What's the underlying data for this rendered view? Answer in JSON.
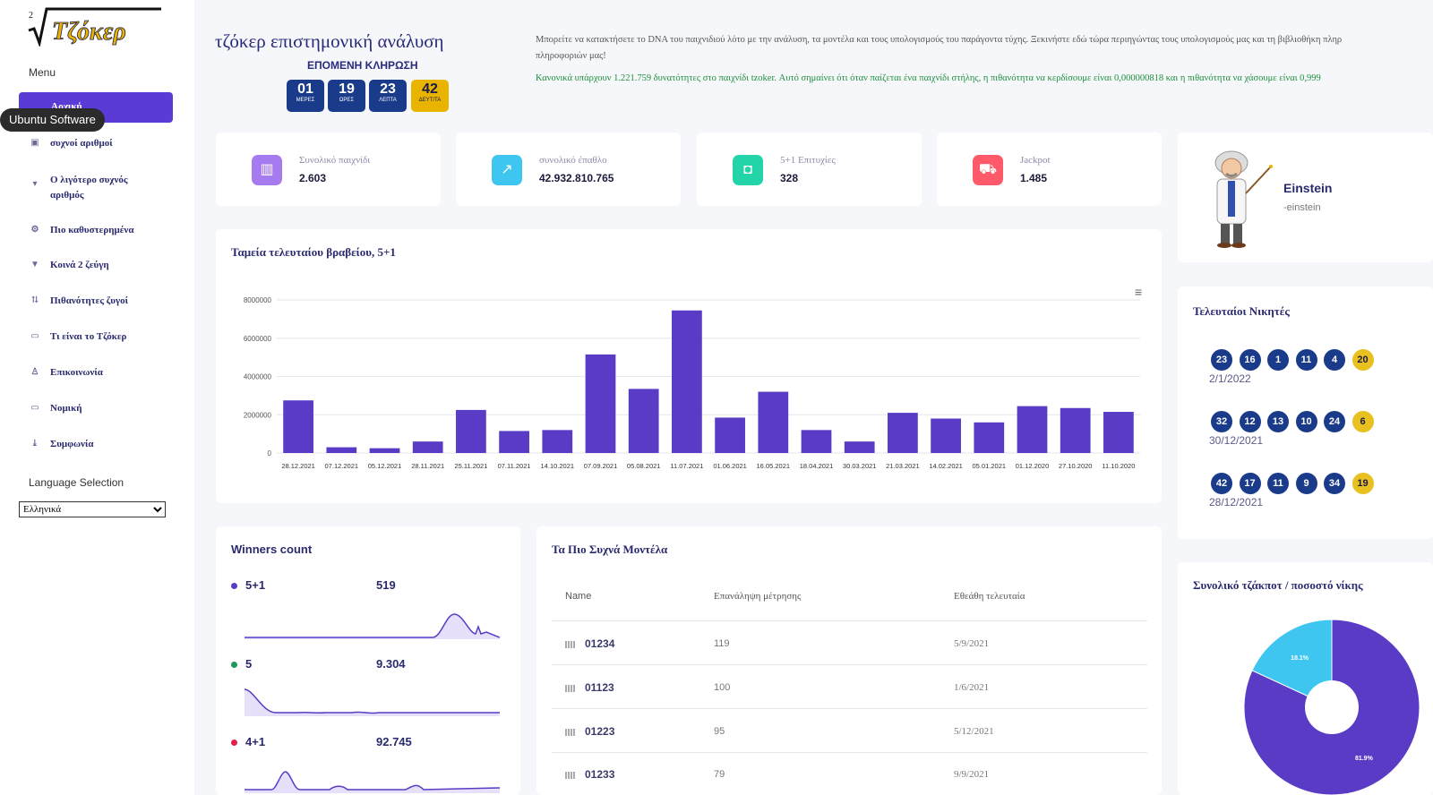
{
  "sidebar": {
    "logo_text": "Τζόκερ",
    "menu_title": "Menu",
    "active_item": "Αρχική",
    "tooltip": "Ubuntu Software",
    "items": [
      {
        "label": "συχνοί αριθμοί",
        "icon": "calendar-icon"
      },
      {
        "label": "Ο λιγότερο συχνός αριθμός",
        "icon": "chevron-down-icon"
      },
      {
        "label": "Πιο καθυστερημένα",
        "icon": "gear-icon"
      },
      {
        "label": "Κοινά 2 ζεύγη",
        "icon": "filter-icon"
      },
      {
        "label": "Πιθανότητες ζυγοί",
        "icon": "sort-icon"
      },
      {
        "label": "Τι είναι το Τζόκερ",
        "icon": "chat-icon"
      },
      {
        "label": "Επικοινωνία",
        "icon": "user-icon"
      },
      {
        "label": "Νομική",
        "icon": "box-icon"
      },
      {
        "label": "Συμφωνία",
        "icon": "download-icon"
      }
    ],
    "language_title": "Language Selection",
    "language_value": "Ελληνικά"
  },
  "header": {
    "title": "τζόκερ επιστημονική ανάλυση",
    "next_draw": "ΕΠΟΜΕΝΗ ΚΛΗΡΩΣΗ",
    "countdown": [
      {
        "value": "01",
        "label": "ΜΕΡΕΣ"
      },
      {
        "value": "19",
        "label": "ΩΡΕΣ"
      },
      {
        "value": "23",
        "label": "ΛΕΠΤΑ"
      },
      {
        "value": "42",
        "label": "ΔΕΥΤ/ΤΑ"
      }
    ],
    "intro_line1": "Μπορείτε να κατακτήσετε το DNA του παιχνιδιού λότο με την ανάλυση, τα μοντέλα και τους υπολογισμούς του παράγοντα τύχης. Ξεκινήστε εδώ τώρα περιηγώντας τους υπολογισμούς μας και τη βιβλιοθήκη πληροφοριών μας!",
    "intro_line1a": "Μπορείτε να κατακτήσετε το DNA του παιχνιδιού λότο με την ανάλυση, τα μοντέλα και τους υπολογισμούς του παράγοντα τύχης. Ξεκινήστε εδώ τώρα περιηγώντας τους υπολογισμούς μας και τη βιβλιοθήκη πληρ",
    "intro_line1b": "πληροφοριών μας!",
    "intro_line2": "Κανονικά υπάρχουν 1.221.759 δυνατότητες στο παιχνίδι tzoker. Αυτό σημαίνει ότι όταν παίζεται ένα παιχνίδι στήλης, η πιθανότητα να κερδίσουμε είναι 0,000000818 και η πιθανότητα να χάσουμε είναι 0,999"
  },
  "stats": [
    {
      "label": "Συνολικό παιχνίδι",
      "value": "2.603",
      "icon": "chart-icon",
      "color": "#a77bf0"
    },
    {
      "label": "συνολικό έπαθλο",
      "value": "42.932.810.765",
      "icon": "trend-icon",
      "color": "#3ec6f0"
    },
    {
      "label": "5+1 Επιτυχίες",
      "value": "328",
      "icon": "bag-icon",
      "color": "#22d4a8"
    },
    {
      "label": "Jackpot",
      "value": "1.485",
      "icon": "cart-icon",
      "color": "#ff5a6a"
    }
  ],
  "chart_data": {
    "type": "bar",
    "title": "Ταμεία τελευταίου βραβείου, 5+1",
    "categories": [
      "28.12.2021",
      "07.12.2021",
      "05.12.2021",
      "28.11.2021",
      "25.11.2021",
      "07.11.2021",
      "14.10.2021",
      "07.09.2021",
      "05.08.2021",
      "11.07.2021",
      "01.06.2021",
      "16.05.2021",
      "18.04.2021",
      "30.03.2021",
      "21.03.2021",
      "14.02.2021",
      "05.01.2021",
      "01.12.2020",
      "27.10.2020",
      "11.10.2020"
    ],
    "values": [
      2750000,
      300000,
      250000,
      600000,
      2250000,
      1150000,
      1200000,
      5150000,
      3350000,
      7450000,
      1850000,
      3200000,
      1200000,
      600000,
      2100000,
      1800000,
      1600000,
      2450000,
      2350000,
      2150000
    ],
    "yticks": [
      "8000000",
      "6000000",
      "4000000",
      "2000000",
      "0"
    ],
    "ylim": [
      0,
      8000000
    ],
    "color": "#5a3bc6",
    "grid": true
  },
  "winners": {
    "title": "Winners count",
    "rows": [
      {
        "label": "5+1",
        "value": "519",
        "color": "#5a3bc6"
      },
      {
        "label": "5",
        "value": "9.304",
        "color": "#1e9a5a"
      },
      {
        "label": "4+1",
        "value": "92.745",
        "color": "#e0204a"
      }
    ]
  },
  "models": {
    "title": "Τα Πιο Συχνά Μοντέλα",
    "headers": [
      "Name",
      "Επανάληψη μέτρησης",
      "Εθεάθη τελευταία"
    ],
    "rows": [
      {
        "name": "01234",
        "count": "119",
        "last": "5/9/2021"
      },
      {
        "name": "01123",
        "count": "100",
        "last": "1/6/2021"
      },
      {
        "name": "01223",
        "count": "95",
        "last": "5/12/2021"
      },
      {
        "name": "01233",
        "count": "79",
        "last": "9/9/2021"
      }
    ]
  },
  "profile": {
    "name": "Einstein",
    "sub": "-einstein"
  },
  "last_winners": {
    "title": "Τελευταίοι Νικητές",
    "draws": [
      {
        "date": "2/1/2022",
        "balls": [
          "23",
          "16",
          "1",
          "11",
          "4"
        ],
        "joker": "20"
      },
      {
        "date": "30/12/2021",
        "balls": [
          "32",
          "12",
          "13",
          "10",
          "24"
        ],
        "joker": "6"
      },
      {
        "date": "28/12/2021",
        "balls": [
          "42",
          "17",
          "11",
          "9",
          "34"
        ],
        "joker": "19"
      }
    ]
  },
  "pie": {
    "title": "Συνολικό τζάκποτ / ποσοστό νίκης",
    "slices": [
      {
        "label": "81.9%",
        "value": 81.9,
        "color": "#5a3bc6"
      },
      {
        "label": "18.1%",
        "value": 18.1,
        "color": "#3ec6f0"
      }
    ]
  }
}
